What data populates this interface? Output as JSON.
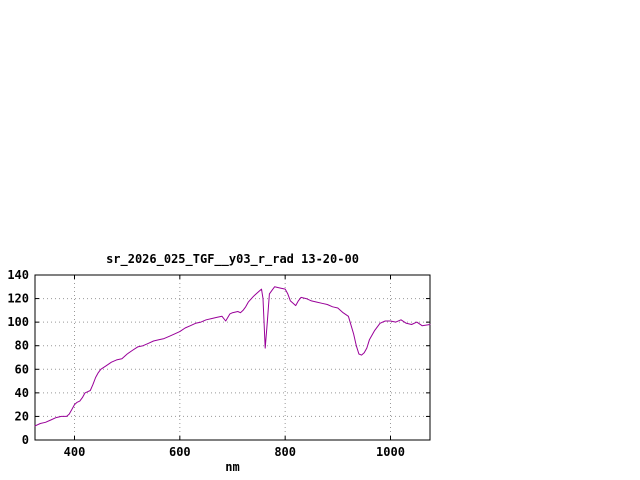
{
  "chart": {
    "title": "sr_2026_025_TGF__y03_r_rad 13-20-00",
    "xlabel": "nm"
  },
  "chart_data": {
    "type": "line",
    "title": "sr_2026_025_TGF__y03_r_rad 13-20-00",
    "xlabel": "nm",
    "ylabel": "",
    "xlim": [
      325,
      1075
    ],
    "ylim": [
      0,
      140
    ],
    "xticks": [
      400,
      600,
      800,
      1000
    ],
    "yticks": [
      0,
      20,
      40,
      60,
      80,
      100,
      120,
      140
    ],
    "grid": true,
    "legend": "none",
    "line_color": "#990099",
    "grid_color": "#999999",
    "border_color": "#000000",
    "x": [
      325,
      335,
      345,
      355,
      365,
      375,
      385,
      390,
      395,
      400,
      405,
      410,
      415,
      420,
      425,
      430,
      435,
      440,
      445,
      450,
      460,
      470,
      480,
      490,
      500,
      510,
      520,
      530,
      540,
      550,
      560,
      570,
      580,
      590,
      600,
      610,
      620,
      630,
      640,
      650,
      660,
      670,
      680,
      687,
      695,
      700,
      710,
      715,
      720,
      725,
      730,
      740,
      750,
      755,
      758,
      762,
      766,
      770,
      775,
      780,
      790,
      800,
      805,
      810,
      815,
      820,
      825,
      830,
      840,
      850,
      860,
      870,
      880,
      890,
      900,
      910,
      920,
      930,
      935,
      940,
      945,
      950,
      955,
      960,
      970,
      980,
      990,
      1000,
      1010,
      1020,
      1030,
      1040,
      1050,
      1060,
      1075
    ],
    "y": [
      12,
      14,
      15,
      17,
      19,
      20,
      20,
      22,
      26,
      30,
      32,
      33,
      36,
      40,
      41,
      42,
      47,
      53,
      57,
      60,
      63,
      66,
      68,
      69,
      73,
      76,
      79,
      80,
      82,
      84,
      85,
      86,
      88,
      90,
      92,
      95,
      97,
      99,
      100,
      102,
      103,
      104,
      105,
      101,
      107,
      108,
      109,
      108,
      110,
      113,
      117,
      122,
      126,
      128,
      120,
      78,
      100,
      124,
      127,
      130,
      129,
      128,
      124,
      118,
      116,
      114,
      118,
      121,
      120,
      118,
      117,
      116,
      115,
      113,
      112,
      108,
      105,
      90,
      80,
      73,
      72,
      74,
      78,
      85,
      93,
      99,
      101,
      101,
      100,
      102,
      99,
      98,
      100,
      97,
      98
    ]
  }
}
